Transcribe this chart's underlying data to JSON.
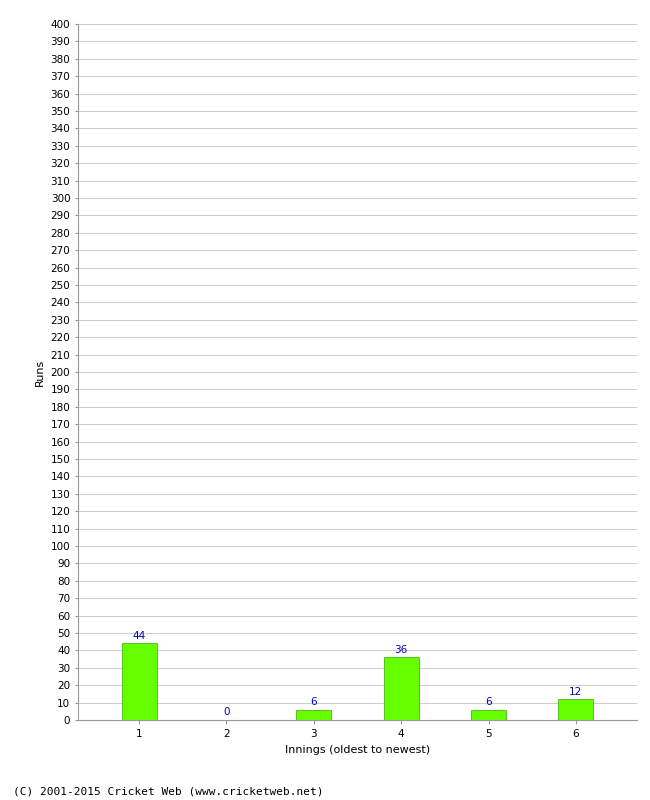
{
  "categories": [
    "1",
    "2",
    "3",
    "4",
    "5",
    "6"
  ],
  "values": [
    44,
    0,
    6,
    36,
    6,
    12
  ],
  "bar_color": "#66ff00",
  "bar_edge_color": "#33aa00",
  "xlabel": "Innings (oldest to newest)",
  "ylabel": "Runs",
  "ylim": [
    0,
    400
  ],
  "ytick_step": 10,
  "label_color": "#0000cc",
  "label_fontsize": 7.5,
  "axis_fontsize": 8,
  "tick_fontsize": 7.5,
  "footer": "(C) 2001-2015 Cricket Web (www.cricketweb.net)",
  "footer_fontsize": 8,
  "background_color": "#ffffff",
  "grid_color": "#cccccc",
  "bar_width": 0.4
}
